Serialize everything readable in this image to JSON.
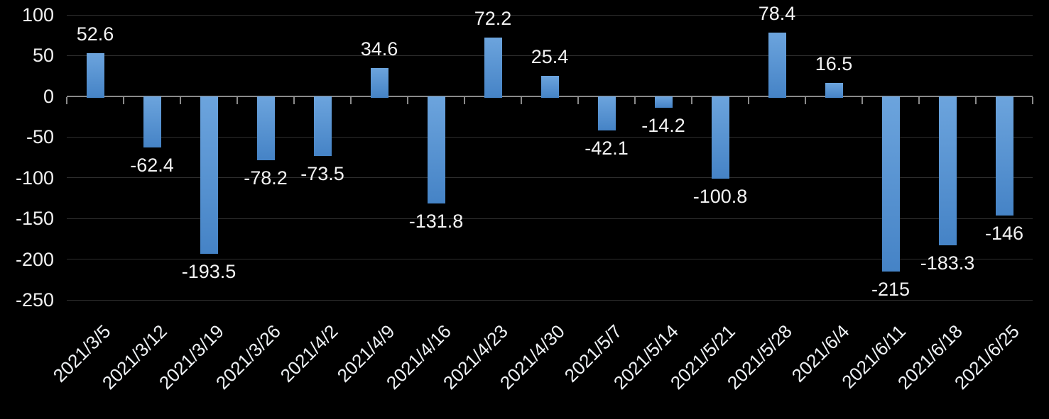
{
  "chart_data": {
    "type": "bar",
    "title": "",
    "xlabel": "",
    "ylabel": "",
    "categories": [
      "2021/3/5",
      "2021/3/12",
      "2021/3/19",
      "2021/3/26",
      "2021/4/2",
      "2021/4/9",
      "2021/4/16",
      "2021/4/23",
      "2021/4/30",
      "2021/5/7",
      "2021/5/14",
      "2021/5/21",
      "2021/5/28",
      "2021/6/4",
      "2021/6/11",
      "2021/6/18",
      "2021/6/25"
    ],
    "values": [
      52.6,
      -62.4,
      -193.5,
      -78.2,
      -73.5,
      34.6,
      -131.8,
      72.2,
      25.4,
      -42.1,
      -14.2,
      -100.8,
      78.4,
      16.5,
      -215,
      -183.3,
      -146
    ],
    "value_labels": [
      "52.6",
      "-62.4",
      "-193.5",
      "-78.2",
      "-73.5",
      "34.6",
      "-131.8",
      "72.2",
      "25.4",
      "-42.1",
      "-14.2",
      "-100.8",
      "78.4",
      "16.5",
      "-215",
      "-183.3",
      "-146"
    ],
    "yticks": [
      100,
      50,
      0,
      -50,
      -100,
      -150,
      -200,
      -250
    ],
    "ytick_labels": [
      "100",
      "50",
      "0",
      "-50",
      "-100",
      "-150",
      "-200",
      "-250"
    ],
    "ylim": [
      -250,
      100
    ],
    "grid": true,
    "legend": false,
    "x_label_rotation_deg": -45,
    "colors": {
      "background": "#000000",
      "bar_gradient_top": "#6ca4dd",
      "bar_gradient_bottom": "#4583c6",
      "gridline": "#2e2e2e",
      "axis_line": "#8a8a8a",
      "text": "#f2f2f2"
    }
  }
}
